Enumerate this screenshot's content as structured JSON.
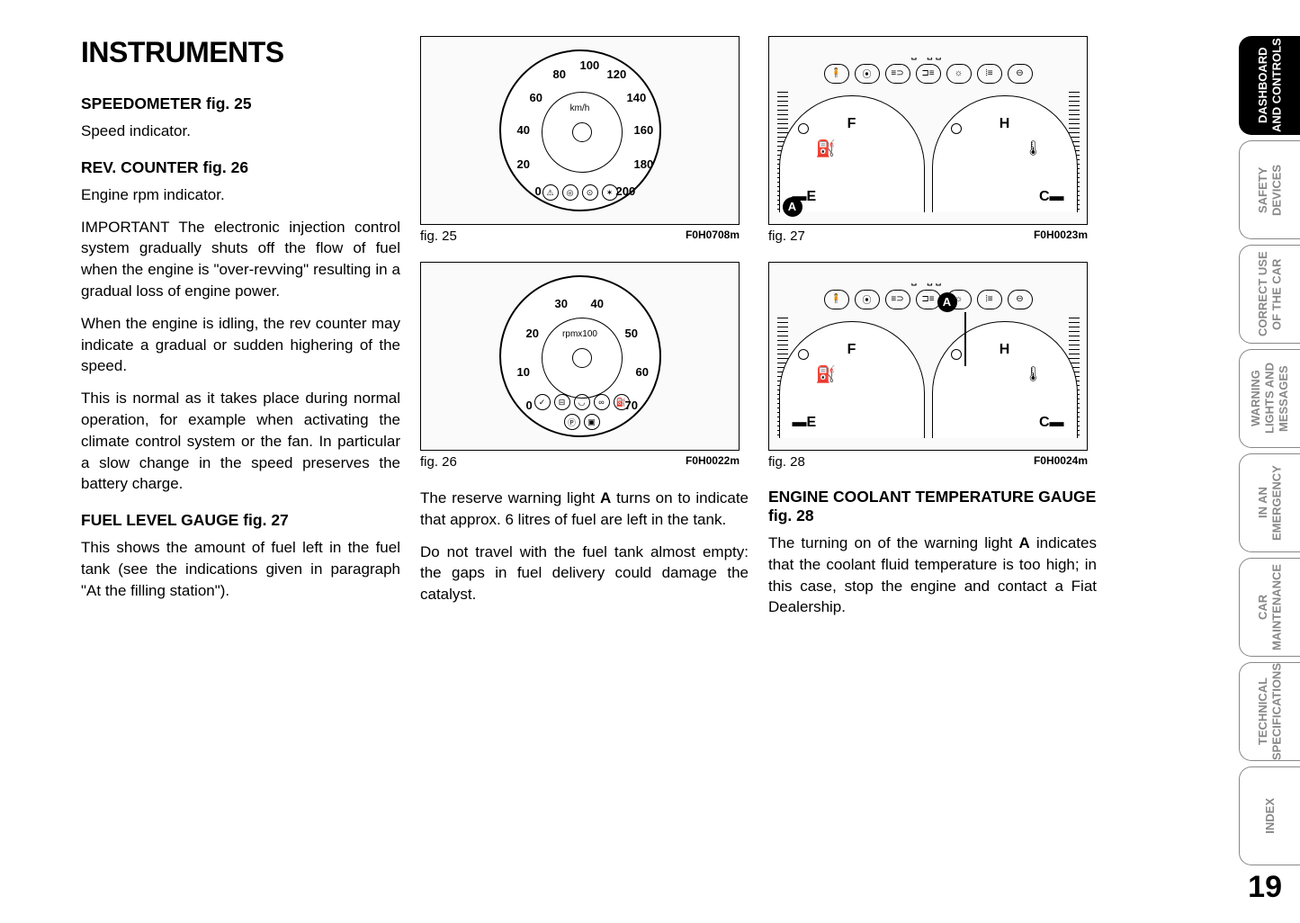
{
  "page_number": "19",
  "heading": "INSTRUMENTS",
  "sections": {
    "speedometer": {
      "title": "SPEEDOMETER fig. 25",
      "body": "Speed indicator."
    },
    "rev": {
      "title": "REV. COUNTER fig. 26",
      "body1": "Engine rpm indicator.",
      "body2": "IMPORTANT The electronic injection control system gradually shuts off the flow of fuel when the engine is \"over-revving\" resulting in a gradual loss of engine power.",
      "body3": "When the engine is idling, the rev counter may indicate a gradual or sudden highering of the speed.",
      "body4": "This is normal as it takes place during normal operation, for example when activating the climate control system or the fan. In particular a slow change in the speed preserves the battery charge."
    },
    "fuel": {
      "title": "FUEL LEVEL GAUGE fig. 27",
      "body": "This shows the amount of fuel left in the fuel tank (see the indications given in paragraph \"At the filling station\")."
    },
    "reserve": {
      "body1_pre": "The reserve warning light ",
      "body1_bold": "A",
      "body1_post": " turns on to indicate that approx. 6 litres of fuel are left in the tank.",
      "body2": "Do not travel with the fuel tank almost empty: the gaps in fuel delivery could damage the catalyst."
    },
    "coolant": {
      "title": "ENGINE COOLANT TEMPERATURE GAUGE fig. 28",
      "body_pre": "The turning on of the warning light ",
      "body_bold": "A",
      "body_post": " indicates that the coolant fluid temperature is too high; in this case, stop the engine and contact a Fiat Dealership."
    }
  },
  "figures": {
    "fig25": {
      "label": "fig. 25",
      "code": "F0H0708m",
      "unit": "km/h",
      "nums": [
        "20",
        "40",
        "60",
        "80",
        "100",
        "120",
        "140",
        "160",
        "180",
        "200"
      ],
      "num_pos": [
        {
          "t": 118,
          "l": 18
        },
        {
          "t": 80,
          "l": 18
        },
        {
          "t": 44,
          "l": 32
        },
        {
          "t": 18,
          "l": 58
        },
        {
          "t": 8,
          "l": 88
        },
        {
          "t": 18,
          "l": 118
        },
        {
          "t": 44,
          "l": 140
        },
        {
          "t": 80,
          "l": 148
        },
        {
          "t": 118,
          "l": 148
        },
        {
          "t": 148,
          "l": 128
        }
      ],
      "zero": "0"
    },
    "fig26": {
      "label": "fig. 26",
      "code": "F0H0022m",
      "unit": "rpmx100",
      "nums": [
        "10",
        "20",
        "30",
        "40",
        "50",
        "60",
        "70"
      ],
      "num_pos": [
        {
          "t": 98,
          "l": 18
        },
        {
          "t": 55,
          "l": 28
        },
        {
          "t": 22,
          "l": 60
        },
        {
          "t": 22,
          "l": 100
        },
        {
          "t": 55,
          "l": 138
        },
        {
          "t": 98,
          "l": 150
        },
        {
          "t": 135,
          "l": 138
        }
      ],
      "zero": "0"
    },
    "fig27": {
      "label": "fig. 27",
      "code": "F0H0023m"
    },
    "fig28": {
      "label": "fig. 28",
      "code": "F0H0024m"
    }
  },
  "gauge_labels": {
    "F": "F",
    "E": "E",
    "H": "H",
    "C": "C",
    "A": "A"
  },
  "tabs": [
    "DASHBOARD AND CONTROLS",
    "SAFETY DEVICES",
    "CORRECT USE OF THE CAR",
    "WARNING LIGHTS AND MESSAGES",
    "IN AN EMERGENCY",
    "CAR MAINTENANCE",
    "TECHNICAL SPECIFICATIONS",
    "INDEX"
  ],
  "colors": {
    "text": "#000000",
    "bg": "#ffffff",
    "tab_inactive": "#888888",
    "tab_active_bg": "#000000"
  }
}
